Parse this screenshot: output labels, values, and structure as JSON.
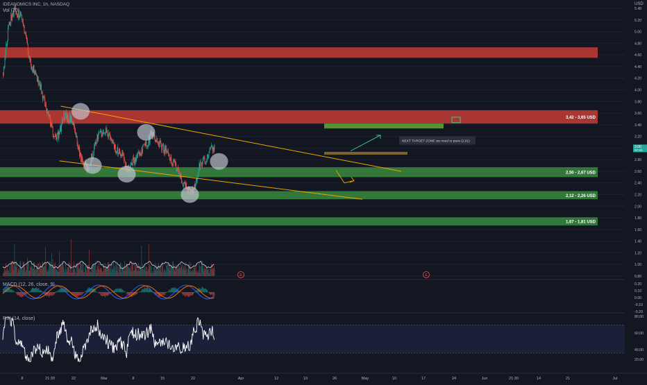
{
  "header": {
    "symbol_line": "IDEANOMICS INC, 1h, NASDAQ",
    "volume_label": "Vol (20)",
    "macd_label": "MACD (12, 26, close, 9)",
    "rsi_label": "RSI (14, close)",
    "currency": "USD"
  },
  "price_axis": {
    "ticks": [
      "5.40",
      "5.20",
      "5.00",
      "4.80",
      "4.60",
      "4.40",
      "4.20",
      "4.00",
      "3.80",
      "3.60",
      "3.40",
      "3.20",
      "3.00",
      "2.80",
      "2.60",
      "2.40",
      "2.20",
      "2.00",
      "1.80",
      "1.60",
      "1.40",
      "1.20",
      "1.00",
      "0.80"
    ],
    "current_price": "3.00",
    "current_sub": "07:42"
  },
  "macd_axis": {
    "ticks": [
      "0.20",
      "0.10",
      "0.00",
      "-0.10",
      "-0.20"
    ]
  },
  "rsi_axis": {
    "ticks": [
      "80.00",
      "60.00",
      "40.00",
      "20.00"
    ]
  },
  "time_axis": {
    "labels": [
      "8",
      "21:30",
      "22",
      "Mar",
      "8",
      "15",
      "22",
      "Apr",
      "12",
      "19",
      "26",
      "May",
      "10",
      "17",
      "24",
      "Jun",
      "21:30",
      "14",
      "21",
      "Jul"
    ]
  },
  "zones": [
    {
      "label": "3,42 - 3,65 USD",
      "color": "#c63c35"
    },
    {
      "label": "2,50 - 2,67 USD",
      "color": "#3a8a3e"
    },
    {
      "label": "2,12 - 2,26 USD",
      "color": "#3a8a3e"
    },
    {
      "label": "1,67 - 1,81 USD",
      "color": "#3a8a3e"
    }
  ],
  "annotation": {
    "text": "NEXT TARGET ZONE we need to pass (2,91)"
  },
  "event_marker": "E",
  "colors": {
    "up": "#26a69a",
    "down": "#ef5350",
    "trendline": "#f0a500",
    "background": "#131722"
  },
  "chart_data": {
    "type": "candlestick",
    "title": "IDEANOMICS INC, 1h, NASDAQ",
    "ylabel": "USD",
    "ylim": [
      0.7,
      5.5
    ],
    "price_path": [
      [
        "Feb 1",
        4.3
      ],
      [
        "Feb 3",
        5.0
      ],
      [
        "Feb 5",
        5.35
      ],
      [
        "Feb 8",
        5.3
      ],
      [
        "Feb 10",
        5.0
      ],
      [
        "Feb 12",
        4.5
      ],
      [
        "Feb 16",
        4.1
      ],
      [
        "Feb 18",
        3.8
      ],
      [
        "Feb 20",
        3.55
      ],
      [
        "Feb 22",
        3.15
      ],
      [
        "Feb 24",
        3.25
      ],
      [
        "Feb 26",
        3.55
      ],
      [
        "Mar 1",
        3.5
      ],
      [
        "Mar 3",
        3.2
      ],
      [
        "Mar 5",
        2.8
      ],
      [
        "Mar 8",
        2.65
      ],
      [
        "Mar 10",
        2.9
      ],
      [
        "Mar 12",
        3.2
      ],
      [
        "Mar 15",
        3.3
      ],
      [
        "Mar 17",
        3.2
      ],
      [
        "Mar 19",
        3.0
      ],
      [
        "Mar 22",
        2.9
      ],
      [
        "Mar 24",
        2.62
      ],
      [
        "Mar 26",
        2.75
      ],
      [
        "Mar 29",
        2.9
      ],
      [
        "Apr 1",
        3.05
      ],
      [
        "Apr 3",
        3.25
      ],
      [
        "Apr 5",
        3.15
      ],
      [
        "Apr 7",
        3.05
      ],
      [
        "Apr 9",
        2.95
      ],
      [
        "Apr 12",
        2.75
      ],
      [
        "Apr 14",
        2.6
      ],
      [
        "Apr 16",
        2.4
      ],
      [
        "Apr 19",
        2.22
      ],
      [
        "Apr 21",
        2.35
      ],
      [
        "Apr 23",
        2.75
      ],
      [
        "Apr 26",
        2.82
      ],
      [
        "Apr 28",
        3.0
      ]
    ],
    "zones": [
      {
        "from": 3.42,
        "to": 3.65,
        "label": "3,42 - 3,65 USD"
      },
      {
        "from": 2.5,
        "to": 2.67,
        "label": "2,50 - 2,67 USD"
      },
      {
        "from": 2.12,
        "to": 2.26,
        "label": "2,12 - 2,26 USD"
      },
      {
        "from": 1.67,
        "to": 1.81,
        "label": "1,67 - 1,81 USD"
      }
    ],
    "target_zone": 2.91,
    "last_price": 3.0,
    "rsi_levels": [
      70,
      30
    ]
  }
}
